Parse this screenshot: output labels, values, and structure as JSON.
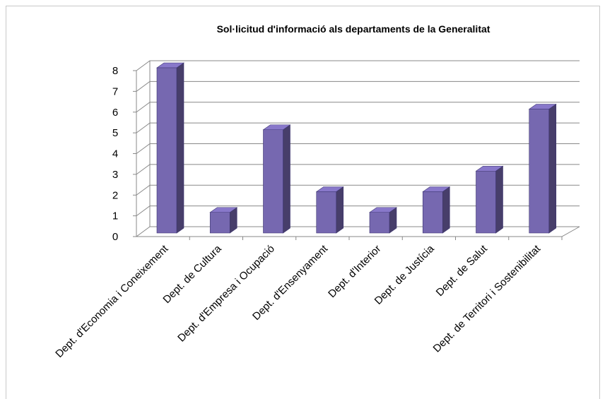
{
  "chart_data": {
    "type": "bar3d",
    "title": "Sol·licitud d'informació als departaments de la Generalitat",
    "categories": [
      "Dept. d'Economia i Coneixement",
      "Dept. de Cultura",
      "Dept. d'Empresa i Ocupació",
      "Dept. d'Ensenyament",
      "Dept. d'Interior",
      "Dept. de Justícia",
      "Dept. de Salut",
      "Dept. de Territori i Sostenibilitat"
    ],
    "values": [
      8,
      1,
      5,
      2,
      1,
      2,
      3,
      6
    ],
    "color": "#7668b0",
    "ylim": [
      0,
      8
    ],
    "yticks": [
      0,
      1,
      2,
      3,
      4,
      5,
      6,
      7,
      8
    ],
    "grid": true
  }
}
